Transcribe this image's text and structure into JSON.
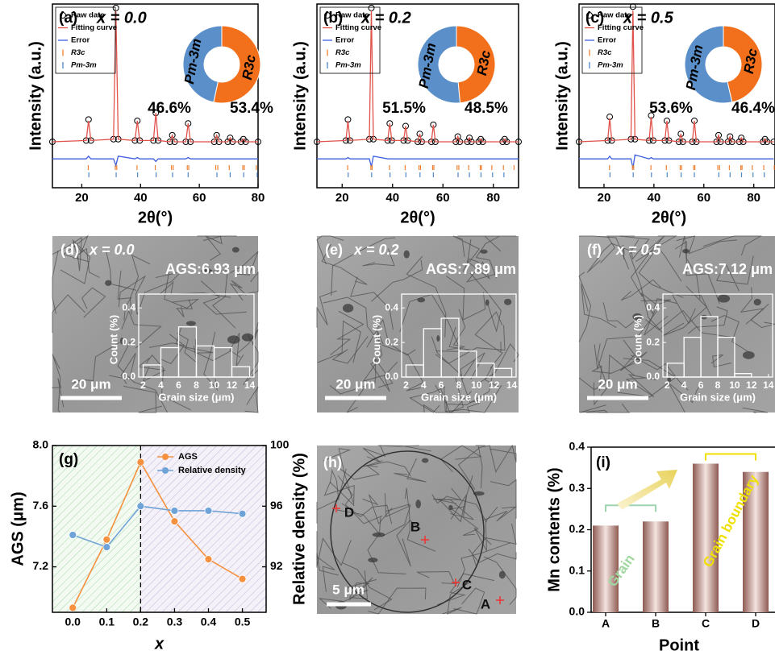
{
  "chart_data": [
    {
      "type": "line",
      "panel_label": "(a)",
      "title": "x = 0.0",
      "xlabel": "2θ(°)",
      "ylabel": "Intensity (a.u.)",
      "xlim": [
        10,
        80
      ],
      "xticks": [
        20,
        40,
        60,
        80
      ],
      "ylim": [
        -0.35,
        1.05
      ],
      "x": [
        10,
        21.5,
        22.3,
        23.1,
        30.8,
        31.6,
        32.4,
        38.1,
        38.9,
        39.7,
        44.4,
        45.2,
        46,
        50,
        50.8,
        51.6,
        55.4,
        56.2,
        57,
        65.1,
        65.9,
        66.7,
        69.7,
        70.5,
        71.3,
        74.2,
        75,
        75.8,
        80
      ],
      "series": [
        {
          "name": "Raw date",
          "color": "#000000",
          "marker": "circle",
          "linestyle": "none",
          "values": [
            0,
            0.01,
            0.17,
            0.01,
            0.02,
            1.02,
            0.02,
            0.01,
            0.16,
            0.01,
            0.01,
            0.22,
            0.01,
            0,
            0.05,
            0,
            0,
            0.14,
            0,
            0,
            0.05,
            0,
            0,
            0.03,
            0,
            0,
            0.02,
            0,
            0
          ]
        },
        {
          "name": "Fitting curve",
          "color": "#e0524a",
          "marker": "none",
          "linestyle": "solid",
          "values": [
            0,
            0.01,
            0.16,
            0.01,
            0.02,
            1.0,
            0.02,
            0.01,
            0.16,
            0.01,
            0.01,
            0.22,
            0.01,
            0,
            0.05,
            0,
            0,
            0.14,
            0,
            0,
            0.05,
            0,
            0,
            0.03,
            0,
            0,
            0.02,
            0,
            0
          ]
        },
        {
          "name": "Error",
          "color": "#3d5fe0",
          "marker": "none",
          "linestyle": "solid",
          "values": [
            -0.13,
            -0.13,
            -0.11,
            -0.13,
            -0.13,
            -0.18,
            -0.11,
            -0.13,
            -0.12,
            -0.13,
            -0.13,
            -0.15,
            -0.13,
            -0.13,
            -0.13,
            -0.13,
            -0.13,
            -0.12,
            -0.13,
            -0.13,
            -0.13,
            -0.13,
            -0.13,
            -0.13,
            -0.13,
            -0.13,
            -0.13,
            -0.13,
            -0.13
          ]
        }
      ],
      "reflections": [
        {
          "name": "R3c",
          "color": "#f08030",
          "x": [
            22.2,
            31.4,
            31.9,
            38.8,
            45.0,
            50.5,
            51.1,
            55.9,
            56.4,
            65.6,
            66.3,
            70.2,
            74.8,
            75.3,
            79.4
          ]
        },
        {
          "name": "Pm-3m",
          "color": "#4f86c6",
          "x": [
            22.4,
            31.7,
            39.0,
            45.3,
            50.9,
            56.2,
            66.0,
            70.5,
            75.1,
            79.7
          ]
        }
      ]
    },
    {
      "type": "pie",
      "categories": [
        "R3c",
        "Pm-3m"
      ],
      "values": [
        53.4,
        46.6
      ],
      "value_labels": [
        "53.4%",
        "46.6%"
      ],
      "colors": [
        "#f26f1c",
        "#5a8fc9"
      ]
    },
    {
      "type": "line",
      "panel_label": "(b)",
      "title": "x = 0.2",
      "xlabel": "2θ(°)",
      "ylabel": "Intensity (a.u.)",
      "xlim": [
        10,
        90
      ],
      "xticks": [
        20,
        40,
        60,
        80
      ],
      "ylim": [
        -0.35,
        1.05
      ],
      "x": [
        10,
        21.5,
        22.3,
        23.1,
        30.8,
        31.6,
        32.4,
        38.1,
        38.9,
        39.7,
        44.4,
        45.2,
        46,
        50,
        50.8,
        51.6,
        55.4,
        56.2,
        57,
        65.1,
        65.9,
        66.7,
        69.7,
        70.5,
        71.3,
        74.2,
        75,
        75.8,
        83.7,
        84.5,
        85.3,
        90
      ],
      "series": [
        {
          "name": "Raw date",
          "color": "#000000",
          "marker": "circle",
          "linestyle": "none",
          "values": [
            0,
            0.01,
            0.17,
            0.01,
            0.02,
            1.02,
            0.02,
            0.01,
            0.14,
            0.01,
            0.01,
            0.12,
            0.01,
            0,
            0.06,
            0,
            0,
            0.13,
            0,
            0,
            0.04,
            0,
            0,
            0.03,
            0,
            0,
            0.02,
            0,
            0,
            0.02,
            0,
            0
          ]
        },
        {
          "name": "Fitting curve",
          "color": "#e0524a",
          "marker": "none",
          "linestyle": "solid",
          "values": [
            0,
            0.01,
            0.16,
            0.01,
            0.02,
            1.0,
            0.02,
            0.01,
            0.14,
            0.01,
            0.01,
            0.12,
            0.01,
            0,
            0.06,
            0,
            0,
            0.13,
            0,
            0,
            0.04,
            0,
            0,
            0.03,
            0,
            0,
            0.02,
            0,
            0,
            0.02,
            0,
            0
          ]
        },
        {
          "name": "Error",
          "color": "#3d5fe0",
          "marker": "none",
          "linestyle": "solid",
          "values": [
            -0.13,
            -0.13,
            -0.12,
            -0.13,
            -0.13,
            -0.19,
            -0.11,
            -0.13,
            -0.13,
            -0.13,
            -0.13,
            -0.13,
            -0.13,
            -0.13,
            -0.13,
            -0.13,
            -0.13,
            -0.13,
            -0.13,
            -0.13,
            -0.13,
            -0.13,
            -0.13,
            -0.13,
            -0.13,
            -0.13,
            -0.13,
            -0.13,
            -0.13,
            -0.13,
            -0.13,
            -0.13
          ]
        }
      ],
      "reflections": [
        {
          "name": "R3c",
          "color": "#f08030",
          "x": [
            22.2,
            31.4,
            31.9,
            38.8,
            45.0,
            50.5,
            51.1,
            55.9,
            56.4,
            65.6,
            66.3,
            70.2,
            74.8,
            75.3,
            79.4,
            84.0,
            88.2
          ]
        },
        {
          "name": "Pm-3m",
          "color": "#4f86c6",
          "x": [
            22.4,
            31.7,
            39.0,
            45.3,
            50.9,
            56.2,
            66.0,
            70.5,
            75.1,
            79.7,
            84.2
          ]
        }
      ]
    },
    {
      "type": "pie",
      "categories": [
        "R3c",
        "Pm-3m"
      ],
      "values": [
        48.5,
        51.5
      ],
      "value_labels": [
        "48.5%",
        "51.5%"
      ],
      "colors": [
        "#f26f1c",
        "#5a8fc9"
      ]
    },
    {
      "type": "line",
      "panel_label": "(c)",
      "title": "x = 0.5",
      "xlabel": "2θ(°)",
      "ylabel": "Intensity (a.u.)",
      "xlim": [
        10,
        88.5
      ],
      "xticks": [
        20,
        40,
        60,
        80
      ],
      "ylim": [
        -0.35,
        1.05
      ],
      "x": [
        10,
        21.5,
        22.3,
        23.1,
        30.8,
        31.6,
        32.4,
        38.1,
        38.9,
        39.7,
        44.4,
        45.2,
        46,
        50,
        50.8,
        51.6,
        55.4,
        56.2,
        57,
        65.1,
        65.9,
        66.7,
        69.7,
        70.5,
        71.3,
        74.2,
        75,
        75.8,
        83.7,
        84.5,
        85.3,
        88
      ],
      "series": [
        {
          "name": "Raw date",
          "color": "#000000",
          "marker": "circle",
          "linestyle": "none",
          "values": [
            0,
            0.01,
            0.19,
            0.01,
            0.02,
            1.03,
            0.02,
            0.01,
            0.2,
            0.01,
            0.01,
            0.16,
            0.01,
            0,
            0.06,
            0,
            0,
            0.16,
            0,
            0,
            0.05,
            0,
            0,
            0.04,
            0,
            0,
            0.03,
            0,
            0,
            0.02,
            0,
            0
          ]
        },
        {
          "name": "Fitting curve",
          "color": "#e0524a",
          "marker": "none",
          "linestyle": "solid",
          "values": [
            0,
            0.01,
            0.18,
            0.01,
            0.02,
            1.0,
            0.02,
            0.01,
            0.19,
            0.01,
            0.01,
            0.16,
            0.01,
            0,
            0.06,
            0,
            0,
            0.16,
            0,
            0,
            0.05,
            0,
            0,
            0.04,
            0,
            0,
            0.03,
            0,
            0,
            0.02,
            0,
            0
          ]
        },
        {
          "name": "Error",
          "color": "#3d5fe0",
          "marker": "none",
          "linestyle": "solid",
          "values": [
            -0.13,
            -0.13,
            -0.11,
            -0.13,
            -0.13,
            -0.2,
            -0.1,
            -0.13,
            -0.12,
            -0.13,
            -0.13,
            -0.13,
            -0.13,
            -0.13,
            -0.13,
            -0.13,
            -0.13,
            -0.13,
            -0.13,
            -0.13,
            -0.13,
            -0.13,
            -0.13,
            -0.13,
            -0.13,
            -0.13,
            -0.13,
            -0.13,
            -0.13,
            -0.13,
            -0.13,
            -0.13
          ]
        }
      ],
      "reflections": [
        {
          "name": "R3c",
          "color": "#f08030",
          "x": [
            22.2,
            31.4,
            31.9,
            38.8,
            45.0,
            50.5,
            51.1,
            55.9,
            56.4,
            65.6,
            66.3,
            70.2,
            74.8,
            75.3,
            79.4,
            84.0,
            88.2
          ]
        },
        {
          "name": "Pm-3m",
          "color": "#4f86c6",
          "x": [
            22.4,
            31.7,
            39.0,
            45.3,
            50.9,
            56.2,
            66.0,
            70.5,
            75.1,
            79.7,
            84.2
          ]
        }
      ]
    },
    {
      "type": "pie",
      "categories": [
        "R3c",
        "Pm-3m"
      ],
      "values": [
        46.4,
        53.6
      ],
      "value_labels": [
        "46.4%",
        "53.6%"
      ],
      "colors": [
        "#f26f1c",
        "#5a8fc9"
      ]
    },
    {
      "type": "histogram",
      "panel_label": "(d)",
      "title": "x = 0.0",
      "annotation": "AGS:6.93 μm",
      "scale_bar": "20 μm",
      "xlabel": "Grain size (μm)",
      "ylabel": "Count (%)",
      "bins": [
        2,
        4,
        6,
        8,
        10,
        12,
        14
      ],
      "values": [
        0.07,
        0.17,
        0.29,
        0.18,
        0.17,
        0.06
      ],
      "xlim": [
        1.5,
        14.5
      ],
      "xticks": [
        2,
        4,
        6,
        8,
        10,
        12,
        14
      ],
      "ylim": [
        0,
        0.48
      ],
      "yticks": [
        {
          "value": 0,
          "label": "0.0"
        },
        0.2,
        0.4
      ]
    },
    {
      "type": "histogram",
      "panel_label": "(e)",
      "title": "x = 0.2",
      "annotation": "AGS:7.89 μm",
      "scale_bar": "20 μm",
      "xlabel": "Grain size (μm)",
      "ylabel": "Count (%)",
      "bins": [
        2,
        4,
        6,
        8,
        10,
        12,
        14
      ],
      "values": [
        0.07,
        0.28,
        0.34,
        0.15,
        0.08,
        0.05
      ],
      "xlim": [
        1.5,
        14.5
      ],
      "xticks": [
        2,
        4,
        6,
        8,
        10,
        12,
        14
      ],
      "ylim": [
        0,
        0.48
      ],
      "yticks": [
        {
          "value": 0,
          "label": "0.0"
        },
        0.2,
        0.4
      ]
    },
    {
      "type": "histogram",
      "panel_label": "(f)",
      "title": "x = 0.5",
      "annotation": "AGS:7.12 μm",
      "scale_bar": "20 μm",
      "xlabel": "Grain size (μm)",
      "ylabel": "Count (%)",
      "bins": [
        2,
        4,
        6,
        8,
        10,
        12,
        14
      ],
      "values": [
        0.08,
        0.23,
        0.35,
        0.23,
        0.02,
        0
      ],
      "xlim": [
        1.5,
        14.5
      ],
      "xticks": [
        2,
        4,
        6,
        8,
        10,
        12,
        14
      ],
      "ylim": [
        0,
        0.48
      ],
      "yticks": [
        {
          "value": 0,
          "label": "0.0"
        },
        0.2,
        0.4
      ]
    },
    {
      "type": "line",
      "panel_label": "(g)",
      "xlabel": "x",
      "ylabel": "AGS (μm)",
      "y2label": "Relative density (%)",
      "x": [
        0,
        0.1,
        0.2,
        0.3,
        0.4,
        0.5
      ],
      "xlim": [
        -0.06,
        0.57
      ],
      "xticks": [
        {
          "value": 0,
          "label": "0.0"
        },
        0.1,
        0.2,
        0.3,
        0.4,
        0.5
      ],
      "ylim": [
        6.9,
        8.0
      ],
      "yticks": [
        7.2,
        7.6,
        {
          "value": 8,
          "label": "8.0"
        }
      ],
      "y2lim": [
        89,
        100
      ],
      "y2ticks": [
        92,
        96,
        100
      ],
      "divider": 0.2,
      "series": [
        {
          "name": "AGS",
          "color": "#f5913e",
          "marker": "circle",
          "linestyle": "solid",
          "values": [
            6.93,
            7.38,
            7.89,
            7.5,
            7.25,
            7.12
          ]
        },
        {
          "name": "Relative density",
          "color": "#6fa3d8",
          "marker": "circle",
          "linestyle": "solid",
          "axis": "y2",
          "values": [
            94.1,
            93.3,
            96.0,
            95.7,
            95.7,
            95.5
          ]
        }
      ]
    },
    {
      "type": "bar",
      "panel_label": "(i)",
      "xlabel": "Point",
      "ylabel": "Mn contents (%)",
      "categories": [
        "A",
        "B",
        "C",
        "D"
      ],
      "values": [
        0.21,
        0.22,
        0.36,
        0.34
      ],
      "ylim": [
        0,
        0.4
      ],
      "yticks": [
        {
          "value": 0,
          "label": "0.0"
        },
        0.1,
        0.2,
        0.3,
        0.4
      ],
      "annotations": [
        "Grain",
        "Grain boundary"
      ]
    }
  ],
  "sem_h": {
    "panel_label": "(h)",
    "scale_bar": "5 μm",
    "points": [
      "A",
      "B",
      "C",
      "D"
    ]
  }
}
